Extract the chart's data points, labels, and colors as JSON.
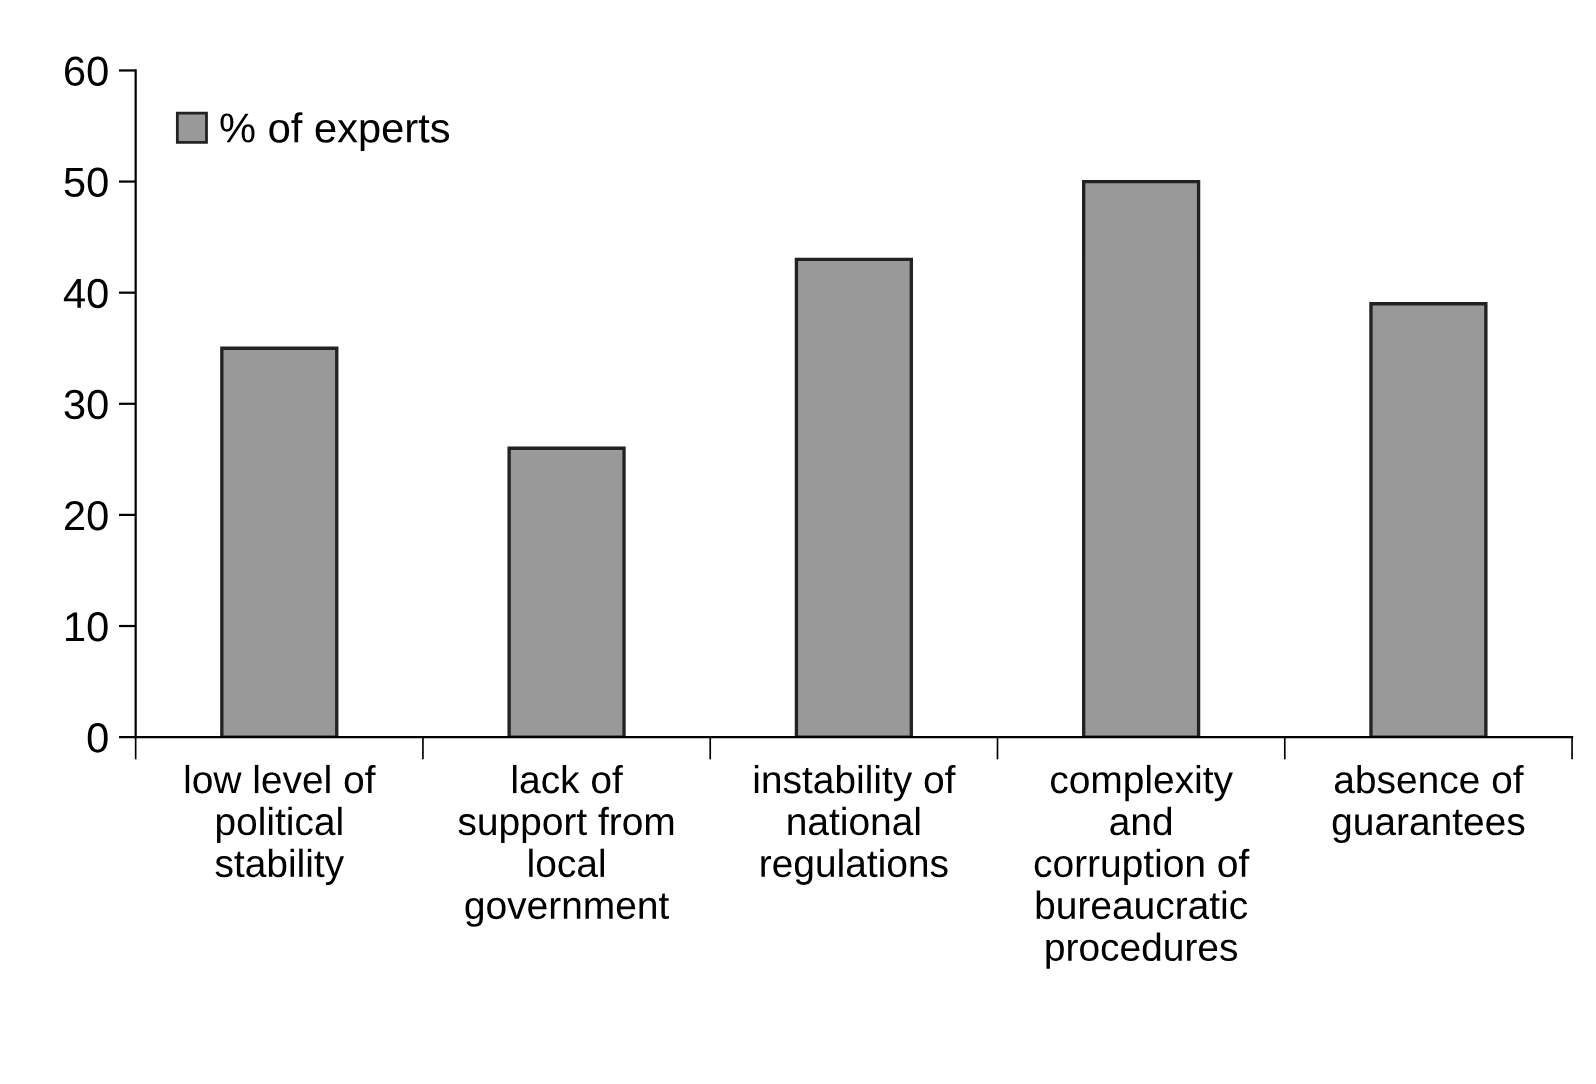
{
  "chart_data": {
    "type": "bar",
    "categories": [
      "low level of\npolitical\nstability",
      "lack of\nsupport from\nlocal\ngovernment",
      "instability of\nnational\nregulations",
      "complexity\nand\ncorruption of\nbureaucratic\nprocedures",
      "absence of\nguarantees"
    ],
    "series": [
      {
        "name": "% of experts",
        "color": "#999999",
        "values": [
          35,
          26,
          43,
          50,
          39
        ]
      }
    ],
    "ylim": [
      0,
      60
    ],
    "yticks": [
      0,
      10,
      20,
      30,
      40,
      50,
      60
    ],
    "grid": false,
    "legend": "top left"
  }
}
